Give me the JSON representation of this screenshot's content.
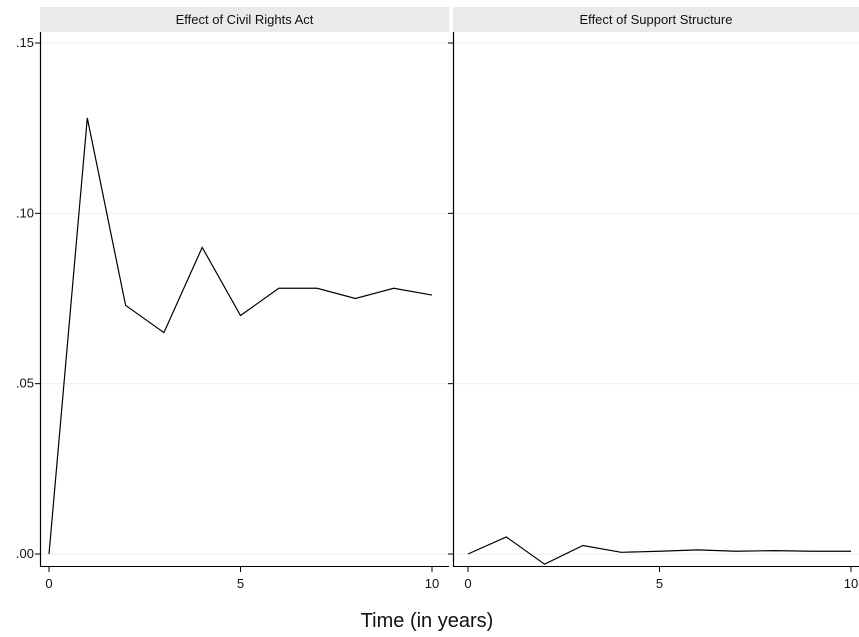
{
  "xlabel": "Time (in years)",
  "colors": {
    "line": "#000000",
    "strip_fill": "#eaeaea",
    "grid": "#eeeeee",
    "axis": "#000000"
  },
  "chart_data": [
    {
      "type": "line",
      "title": "Effect of Civil Rights Act",
      "xlabel": "Time (in years)",
      "ylabel": "",
      "x": [
        0,
        1,
        2,
        3,
        4,
        5,
        6,
        7,
        8,
        9,
        10
      ],
      "series": [
        {
          "values": [
            0.0,
            0.128,
            0.073,
            0.065,
            0.09,
            0.07,
            0.078,
            0.078,
            0.075,
            0.078,
            0.076
          ]
        }
      ],
      "xticks": [
        0,
        5,
        10
      ],
      "xtick_labels": [
        "0",
        "5",
        "10"
      ],
      "yticks": [
        0,
        0.05,
        0.1,
        0.15
      ],
      "ytick_labels": [
        ".00",
        ".05",
        ".10",
        ".15"
      ],
      "xlim": [
        0,
        10
      ],
      "ylim": [
        0,
        0.15
      ],
      "grid": true
    },
    {
      "type": "line",
      "title": "Effect of Support Structure",
      "xlabel": "Time (in years)",
      "ylabel": "",
      "x": [
        0,
        1,
        2,
        3,
        4,
        5,
        6,
        7,
        8,
        9,
        10
      ],
      "series": [
        {
          "values": [
            0.0,
            0.005,
            -0.003,
            0.0025,
            0.0005,
            0.0008,
            0.0012,
            0.0008,
            0.001,
            0.0008,
            0.0008
          ]
        }
      ],
      "xticks": [
        0,
        5,
        10
      ],
      "xtick_labels": [
        "0",
        "5",
        "10"
      ],
      "yticks": [
        0,
        0.05,
        0.1,
        0.15
      ],
      "ytick_labels": [],
      "xlim": [
        0,
        10
      ],
      "ylim": [
        0,
        0.15
      ],
      "grid": true
    }
  ]
}
